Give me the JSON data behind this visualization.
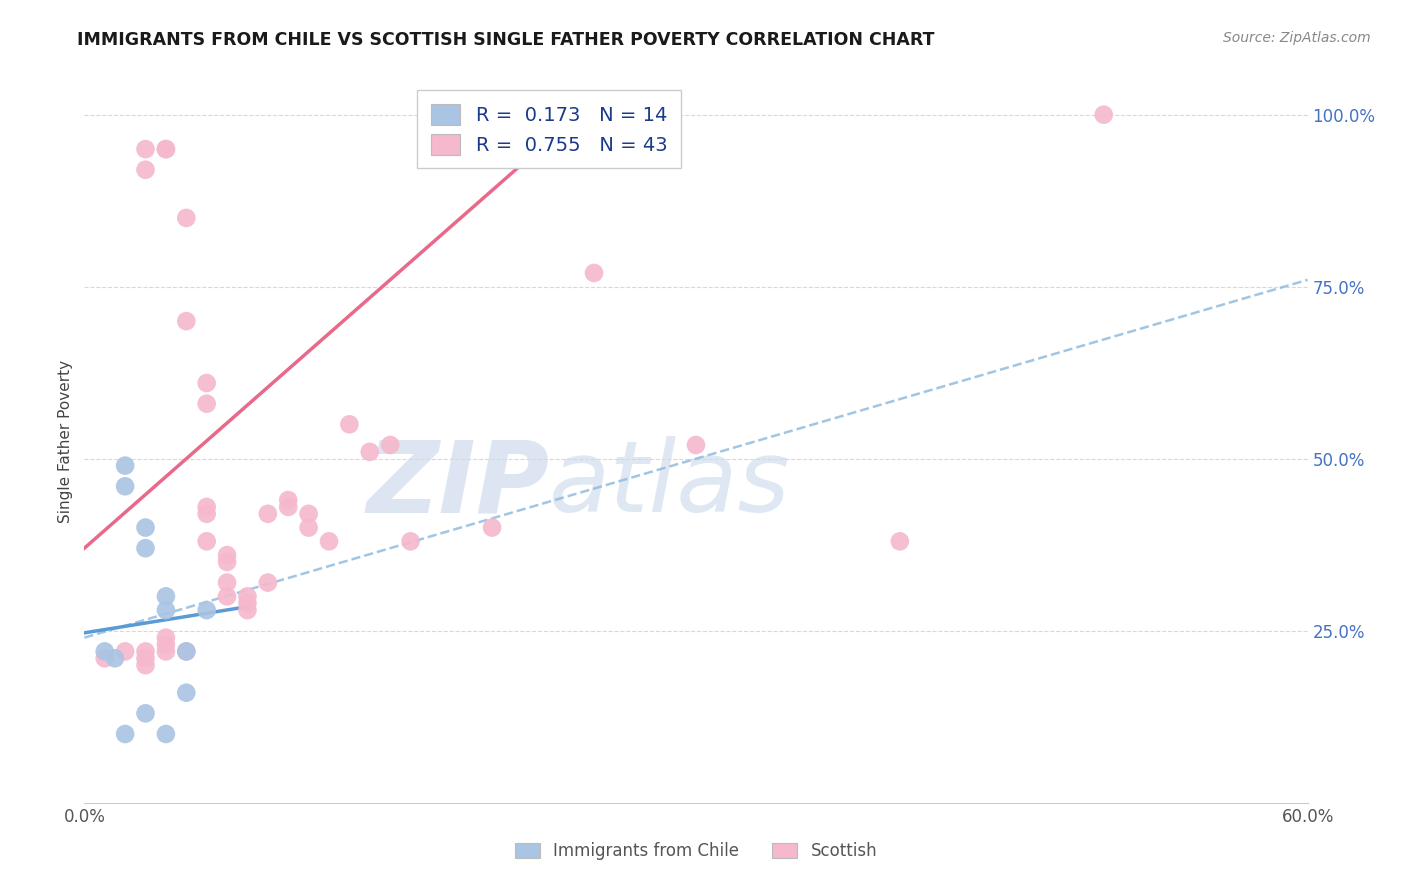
{
  "title": "IMMIGRANTS FROM CHILE VS SCOTTISH SINGLE FATHER POVERTY CORRELATION CHART",
  "source": "Source: ZipAtlas.com",
  "ylabel": "Single Father Poverty",
  "legend_label1": "Immigrants from Chile",
  "legend_label2": "Scottish",
  "r1": 0.173,
  "n1": 14,
  "r2": 0.755,
  "n2": 43,
  "chile_color": "#aac4e4",
  "scottish_color": "#f5b8cc",
  "chile_line_color": "#5b9bd5",
  "scottish_line_color": "#e8698a",
  "chile_line_style": "solid",
  "chile_dashed_color": "#90bce0",
  "chile_points_x": [
    0.001,
    0.0015,
    0.002,
    0.002,
    0.003,
    0.003,
    0.004,
    0.004,
    0.005,
    0.005,
    0.006,
    0.003,
    0.004,
    0.002
  ],
  "chile_points_y": [
    0.22,
    0.21,
    0.46,
    0.49,
    0.4,
    0.37,
    0.3,
    0.28,
    0.16,
    0.22,
    0.28,
    0.13,
    0.1,
    0.1
  ],
  "scottish_points_x": [
    0.001,
    0.002,
    0.003,
    0.003,
    0.003,
    0.003,
    0.003,
    0.004,
    0.004,
    0.004,
    0.004,
    0.004,
    0.005,
    0.005,
    0.005,
    0.006,
    0.006,
    0.006,
    0.006,
    0.006,
    0.007,
    0.007,
    0.007,
    0.007,
    0.008,
    0.008,
    0.008,
    0.009,
    0.009,
    0.01,
    0.01,
    0.011,
    0.011,
    0.012,
    0.013,
    0.014,
    0.015,
    0.016,
    0.02,
    0.025,
    0.03,
    0.04,
    0.05
  ],
  "scottish_points_y": [
    0.21,
    0.22,
    0.95,
    0.92,
    0.22,
    0.21,
    0.2,
    0.95,
    0.95,
    0.24,
    0.23,
    0.22,
    0.85,
    0.7,
    0.22,
    0.61,
    0.58,
    0.43,
    0.42,
    0.38,
    0.36,
    0.35,
    0.32,
    0.3,
    0.3,
    0.29,
    0.28,
    0.32,
    0.42,
    0.44,
    0.43,
    0.42,
    0.4,
    0.38,
    0.55,
    0.51,
    0.52,
    0.38,
    0.4,
    0.77,
    0.52,
    0.38,
    1.0
  ],
  "xmin": 0.0,
  "xmax": 0.06,
  "ymin": 0.0,
  "ymax": 1.05,
  "ytick_vals": [
    0.25,
    0.5,
    0.75,
    1.0
  ],
  "ytick_labels": [
    "25.0%",
    "50.0%",
    "75.0%",
    "100.0%"
  ],
  "watermark_zip": "ZIP",
  "watermark_atlas": "atlas",
  "background_color": "#ffffff",
  "grid_color": "#d8d8d8",
  "title_color": "#1a1a1a",
  "source_color": "#888888",
  "tick_color": "#4472c4",
  "legend_text_color": "#1a3a8a"
}
